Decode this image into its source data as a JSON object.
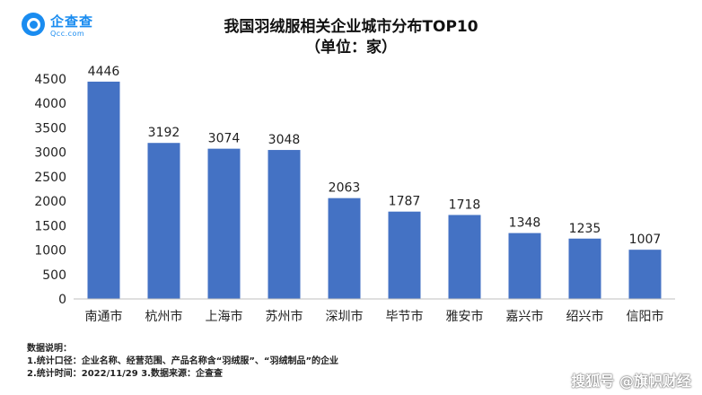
{
  "logo": {
    "name": "企查查",
    "sub": "Qcc.com"
  },
  "title_line1": "我国羽绒服相关企业城市分布TOP10",
  "title_line2": "（单位：家）",
  "chart_data": {
    "type": "bar",
    "title": "我国羽绒服相关企业城市分布TOP10",
    "subtitle": "（单位：家）",
    "categories": [
      "南通市",
      "杭州市",
      "上海市",
      "苏州市",
      "深圳市",
      "毕节市",
      "雅安市",
      "嘉兴市",
      "绍兴市",
      "信阳市"
    ],
    "values": [
      4446,
      3192,
      3074,
      3048,
      2063,
      1787,
      1718,
      1348,
      1235,
      1007
    ],
    "ylim": [
      0,
      4500
    ],
    "yticks": [
      0,
      500,
      1000,
      1500,
      2000,
      2500,
      3000,
      3500,
      4000,
      4500
    ],
    "bar_color": "#4472c4",
    "grid": false,
    "data_labels": true
  },
  "notes": [
    "数据说明：",
    "1.统计口径：企业名称、经营范围、产品名称含“羽绒服”、“羽绒制品”的企业",
    "2.统计时间：2022/11/29    3.数据来源：企查查"
  ],
  "watermark": "搜狐号 @旗帜财经"
}
